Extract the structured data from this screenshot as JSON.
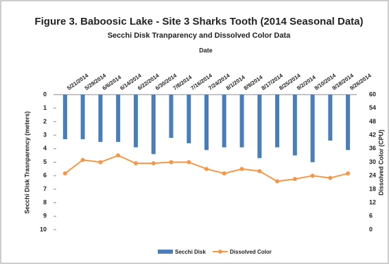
{
  "chart_data": {
    "type": "bar_line",
    "title": "Figure 3. Baboosic Lake - Site 3 Sharks Tooth (2014 Seasonal Data)",
    "subtitle": "Secchi Disk Tranparency and Dissolved Color Data",
    "x_label": "Date",
    "y_label": "Secchi Disk Trasnparency (meters)",
    "y2_label": "Dissolved Color (CPU)",
    "categories": [
      "5/21/2014",
      "5/29/2014",
      "6/6/2014",
      "6/14/2014",
      "6/22/2014",
      "6/30/2014",
      "7/8/2014",
      "7/16/2014",
      "7/24/2014",
      "8/1/2014",
      "8/9/2014",
      "8/17/2014",
      "8/25/2014",
      "9/2/2014",
      "9/10/2014",
      "9/18/2014",
      "9/26/2014"
    ],
    "series": [
      {
        "name": "Secchi Disk",
        "type": "bar",
        "color": "#4a7ebb",
        "values": [
          3.3,
          3.3,
          3.5,
          3.5,
          3.9,
          4.4,
          3.2,
          3.6,
          4.1,
          3.9,
          3.9,
          4.7,
          3.9,
          4.5,
          5.0,
          3.4,
          4.1
        ]
      },
      {
        "name": "Dissolved Color",
        "type": "line",
        "axis": "y2",
        "color": "#f79646",
        "values": [
          25,
          31,
          30,
          33,
          29.5,
          29.5,
          30,
          30,
          27,
          25,
          27,
          26,
          21.5,
          22.5,
          24,
          23,
          25
        ]
      }
    ],
    "ylim": [
      0,
      10
    ],
    "y_inverted": true,
    "yticks": [
      0,
      1,
      2,
      3,
      4,
      5,
      6,
      7,
      8,
      9,
      10
    ],
    "y2lim": [
      0,
      60
    ],
    "y2ticks": [
      0,
      6,
      12,
      18,
      24,
      30,
      36,
      42,
      48,
      54,
      60
    ],
    "x_axis_position": "top",
    "legend": "bottom"
  }
}
